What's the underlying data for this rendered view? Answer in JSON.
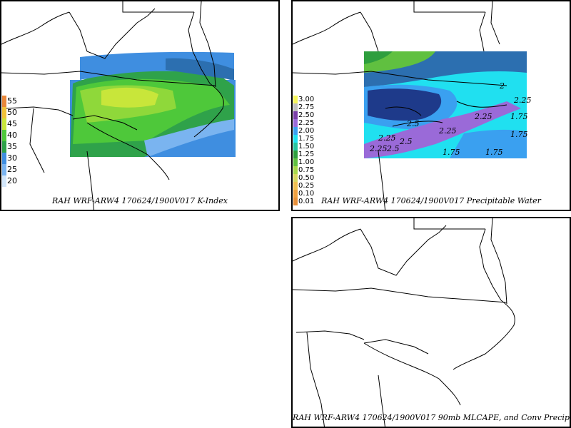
{
  "panels": {
    "kindex": {
      "caption": "RAH WRF-ARW4 170624/1900V017  K-Index",
      "legend": [
        {
          "label": "55",
          "color": "#e8873a"
        },
        {
          "label": "50",
          "color": "#f0c23a"
        },
        {
          "label": "45",
          "color": "#c8e63a"
        },
        {
          "label": "40",
          "color": "#4ec83a"
        },
        {
          "label": "35",
          "color": "#2fa24a"
        },
        {
          "label": "30",
          "color": "#3f8ee0"
        },
        {
          "label": "25",
          "color": "#7ab4f0"
        },
        {
          "label": "20",
          "color": "#d2e6fa"
        }
      ]
    },
    "pwat": {
      "caption": "RAH WRF-ARW4 170624/1900V017  Precipitable Water",
      "legend": [
        {
          "label": "3.00",
          "color": "#f6f65a"
        },
        {
          "label": "2.75",
          "color": "#c0c0c0"
        },
        {
          "label": "2.50",
          "color": "#7a3fa8"
        },
        {
          "label": "2.25",
          "color": "#9a6ad8"
        },
        {
          "label": "2.00",
          "color": "#3aa0f0"
        },
        {
          "label": "1.75",
          "color": "#20e0f0"
        },
        {
          "label": "1.50",
          "color": "#26c4a0"
        },
        {
          "label": "1.25",
          "color": "#2e9e3e"
        },
        {
          "label": "1.00",
          "color": "#60c040"
        },
        {
          "label": "0.75",
          "color": "#a8d84a"
        },
        {
          "label": "0.50",
          "color": "#d8d860"
        },
        {
          "label": "0.25",
          "color": "#f0c050"
        },
        {
          "label": "0.10",
          "color": "#f0a040"
        },
        {
          "label": "0.01",
          "color": "#e8903a"
        }
      ],
      "contour_labels": [
        "2.5",
        "2.25",
        "2.25",
        "1.75",
        "1.75",
        "2",
        "1.75",
        "2.25",
        "2.5",
        "2.25",
        "1.75",
        "2.25",
        "2.5"
      ]
    },
    "mlcape": {
      "caption": "RAH WRF-ARW4 170624/1900V017  90mb MLCAPE, and Conv Precip"
    }
  }
}
